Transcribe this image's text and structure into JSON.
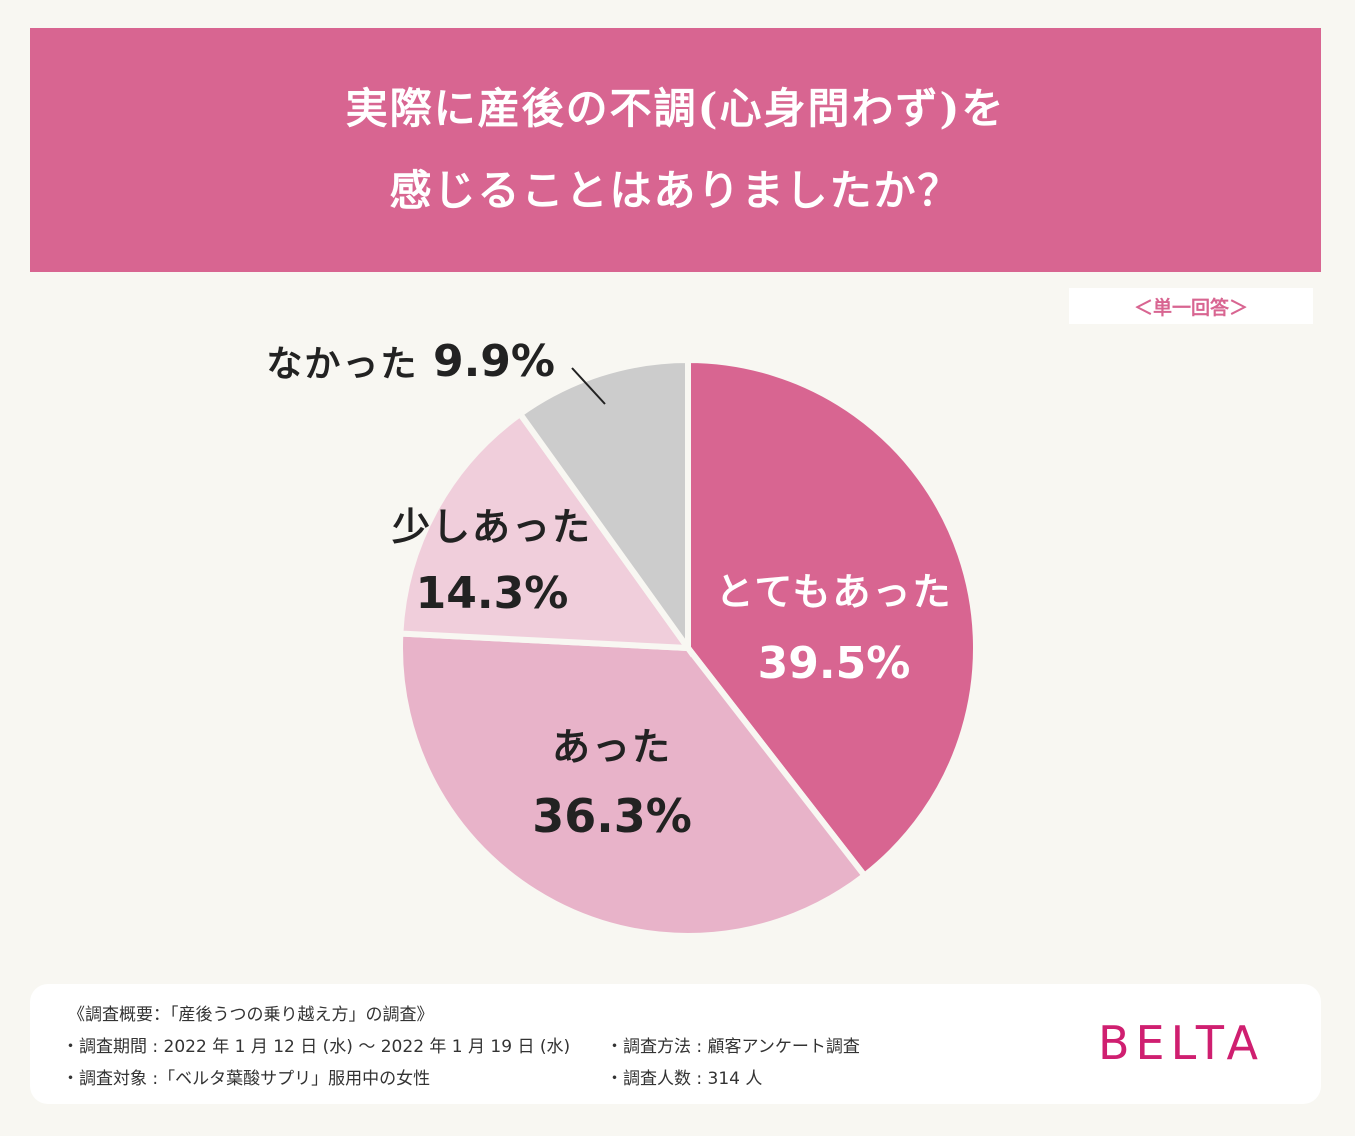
{
  "header": {
    "title_line1": "実際に産後の不調(心身問わず)を",
    "title_line2": "感じることはありましたか？",
    "badge": "＜単一回答＞"
  },
  "chart_data": {
    "type": "pie",
    "title": "実際に産後の不調(心身問わず)を感じることはありましたか？",
    "slices": [
      {
        "label": "とてもあった",
        "value": 39.5,
        "display": "39.5%",
        "color": "#d86591",
        "text_color": "#ffffff"
      },
      {
        "label": "あった",
        "value": 36.3,
        "display": "36.3%",
        "color": "#e8b3c9",
        "text_color": "#222222"
      },
      {
        "label": "少しあった",
        "value": 14.3,
        "display": "14.3%",
        "color": "#f0cedb",
        "text_color": "#222222"
      },
      {
        "label": "なかった",
        "value": 9.9,
        "display": "9.9%",
        "color": "#cccccc",
        "text_color": "#222222"
      }
    ],
    "start": "12 o'clock",
    "direction": "clockwise"
  },
  "footer": {
    "heading": "《調査概要：「産後うつの乗り越え方」の調査》",
    "period": "・調査期間 : 2022 年 1 月 12 日 (水) ～ 2022 年 1 月 19 日 (水)",
    "target": "・調査対象 :「ベルタ葉酸サプリ」服用中の女性",
    "method": "・調査方法 : 顧客アンケート調査",
    "count": "・調査人数 : 314 人"
  },
  "brand": {
    "logo_text": "BELTA",
    "color": "#cf1f70"
  }
}
